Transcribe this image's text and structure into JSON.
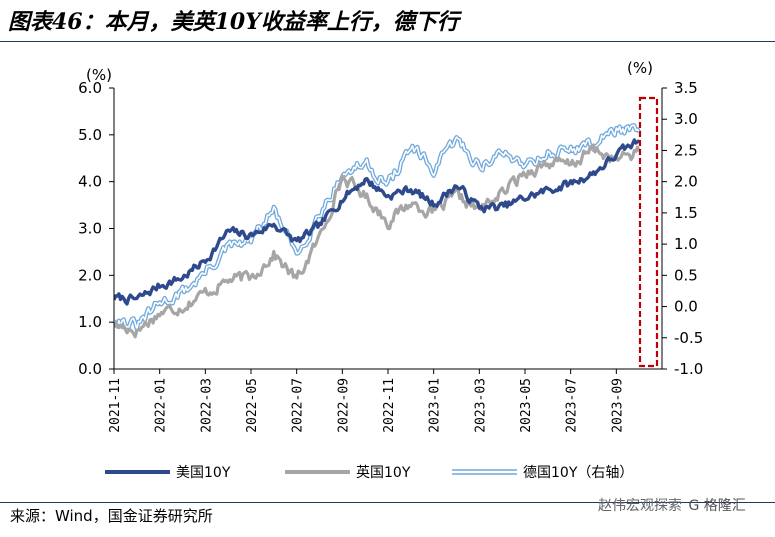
{
  "title": "图表46：本月，美英10Y收益率上行，德下行",
  "source": "来源：Wind，国金证券研究所",
  "watermark": {
    "text": "赵伟宏观探索",
    "brand": "G 格隆汇"
  },
  "colors": {
    "us": "#2E4A8C",
    "uk": "#A6A6A6",
    "de": "#6FA8DC",
    "highlight": "#C00000",
    "axis": "#000000"
  },
  "chart_data": {
    "type": "line",
    "left_unit": "(%)",
    "right_unit": "(%)",
    "left_ylim": [
      0.0,
      6.0
    ],
    "right_ylim": [
      -1.0,
      3.5
    ],
    "left_ticks": [
      "0.0",
      "1.0",
      "2.0",
      "3.0",
      "4.0",
      "5.0",
      "6.0"
    ],
    "right_ticks": [
      "-1.0",
      "-0.5",
      "0.0",
      "0.5",
      "1.0",
      "1.5",
      "2.0",
      "2.5",
      "3.0",
      "3.5"
    ],
    "x_ticks": [
      "2021-11",
      "2022-01",
      "2022-03",
      "2022-05",
      "2022-07",
      "2022-09",
      "2022-11",
      "2023-01",
      "2023-03",
      "2023-05",
      "2023-07",
      "2023-09"
    ],
    "grid": false,
    "legend_position": "bottom",
    "highlight_box": {
      "from": "2023-10",
      "to": "2023-10",
      "style": "dashed"
    },
    "series": [
      {
        "name": "美国10Y",
        "axis": "left",
        "x": [
          "2021-11",
          "2021-12",
          "2022-01",
          "2022-02",
          "2022-03",
          "2022-04",
          "2022-05",
          "2022-06",
          "2022-07",
          "2022-08",
          "2022-09",
          "2022-10",
          "2022-11",
          "2022-12",
          "2023-01",
          "2023-02",
          "2023-03",
          "2023-04",
          "2023-05",
          "2023-06",
          "2023-07",
          "2023-08",
          "2023-09",
          "2023-10"
        ],
        "values": [
          1.52,
          1.48,
          1.78,
          1.95,
          2.32,
          2.93,
          2.85,
          3.1,
          2.7,
          3.05,
          3.65,
          4.05,
          3.7,
          3.85,
          3.52,
          3.92,
          3.45,
          3.45,
          3.65,
          3.82,
          3.96,
          4.18,
          4.57,
          4.88
        ]
      },
      {
        "name": "英国10Y",
        "axis": "left",
        "x": [
          "2021-11",
          "2021-12",
          "2022-01",
          "2022-02",
          "2022-03",
          "2022-04",
          "2022-05",
          "2022-06",
          "2022-07",
          "2022-08",
          "2022-09",
          "2022-10",
          "2022-11",
          "2022-12",
          "2023-01",
          "2023-02",
          "2023-03",
          "2023-04",
          "2023-05",
          "2023-06",
          "2023-07",
          "2023-08",
          "2023-09",
          "2023-10"
        ],
        "values": [
          0.95,
          0.82,
          1.2,
          1.35,
          1.62,
          1.9,
          1.95,
          2.45,
          1.9,
          2.8,
          4.1,
          3.7,
          3.15,
          3.55,
          3.33,
          3.68,
          3.4,
          3.75,
          4.2,
          4.4,
          4.35,
          4.7,
          4.45,
          4.65
        ]
      },
      {
        "name": "德国10Y（右轴）",
        "axis": "right",
        "x": [
          "2021-11",
          "2021-12",
          "2022-01",
          "2022-02",
          "2022-03",
          "2022-04",
          "2022-05",
          "2022-06",
          "2022-07",
          "2022-08",
          "2022-09",
          "2022-10",
          "2022-11",
          "2022-12",
          "2023-01",
          "2023-02",
          "2023-03",
          "2023-04",
          "2023-05",
          "2023-06",
          "2023-07",
          "2023-08",
          "2023-09",
          "2023-10"
        ],
        "values": [
          -0.18,
          -0.32,
          0.05,
          0.22,
          0.55,
          0.94,
          1.05,
          1.55,
          0.82,
          1.5,
          2.1,
          2.3,
          1.95,
          2.55,
          2.18,
          2.68,
          2.25,
          2.45,
          2.3,
          2.45,
          2.52,
          2.6,
          2.85,
          2.8
        ]
      }
    ]
  }
}
